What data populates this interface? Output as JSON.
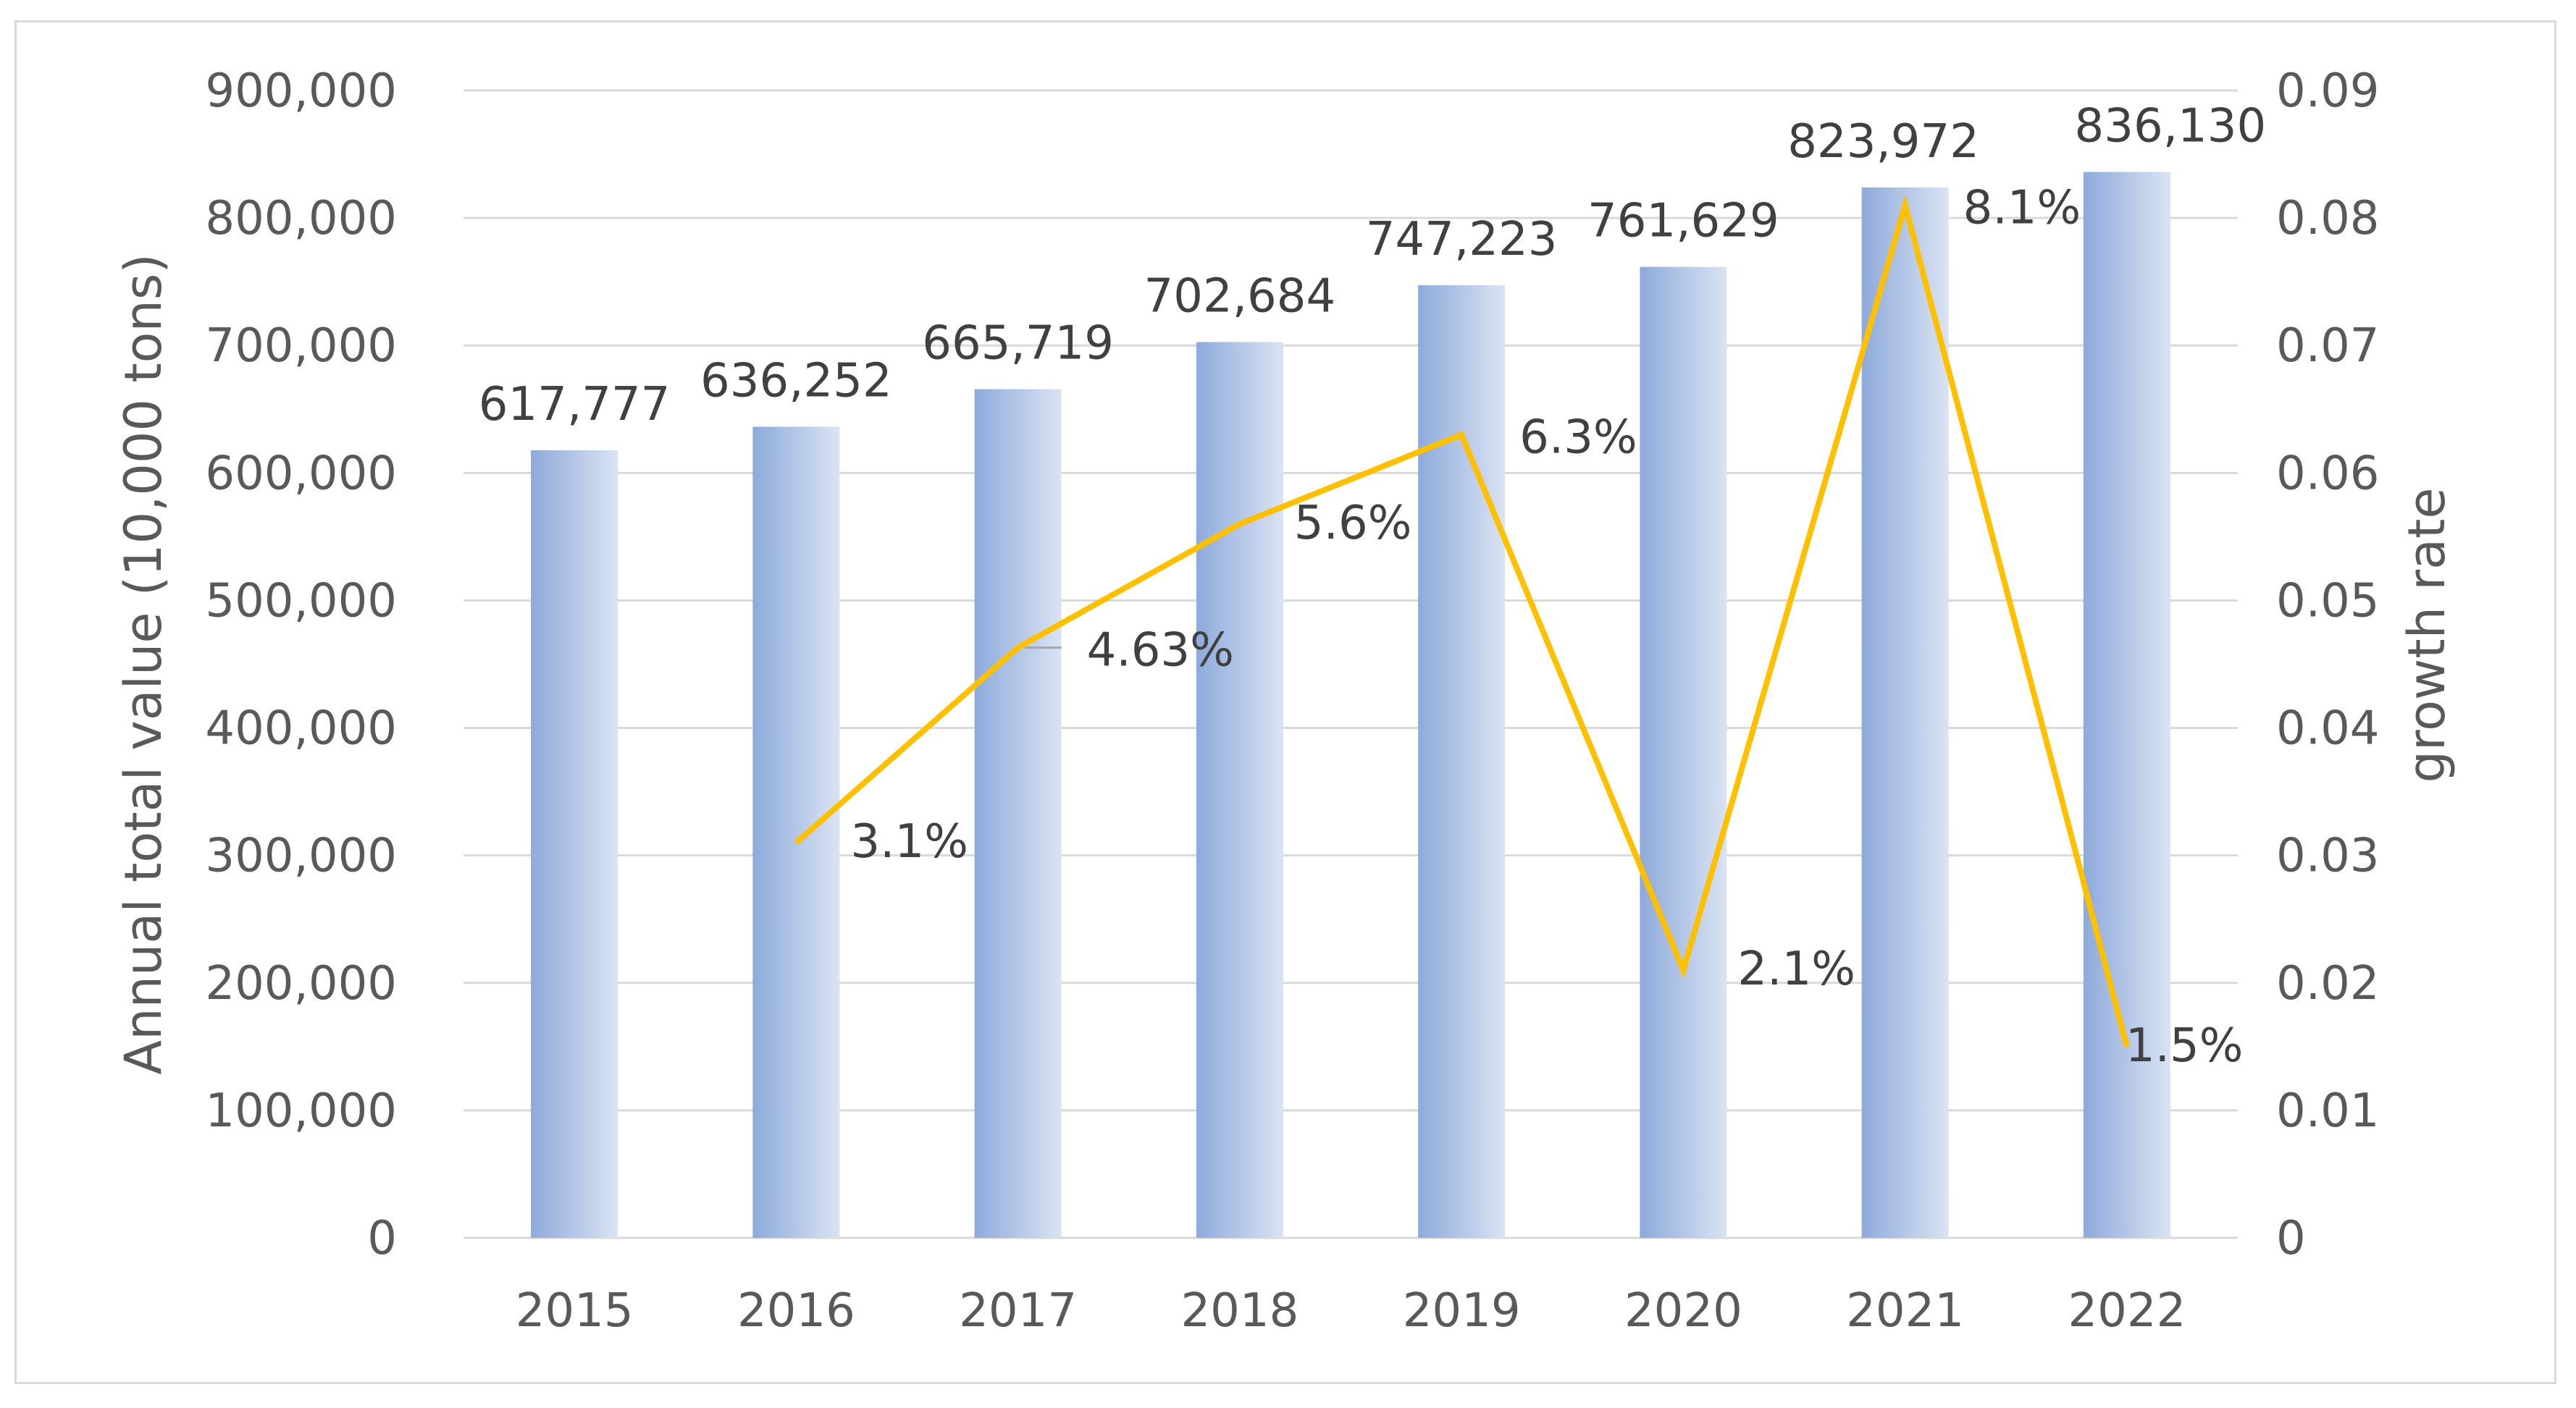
{
  "chart_data": {
    "type": "bar",
    "categories": [
      "2015",
      "2016",
      "2017",
      "2018",
      "2019",
      "2020",
      "2021",
      "2022"
    ],
    "series": [
      {
        "name": "Annual total value",
        "type": "bar",
        "axis": "left",
        "values": [
          617777,
          636252,
          665719,
          702684,
          747223,
          761629,
          823972,
          836130
        ],
        "labels": [
          "617,777",
          "636,252",
          "665,719",
          "702,684",
          "747,223",
          "761,629",
          "823,972",
          "836,130"
        ]
      },
      {
        "name": "growth rate",
        "type": "line",
        "axis": "right",
        "x": [
          "2016",
          "2017",
          "2018",
          "2019",
          "2020",
          "2021",
          "2022"
        ],
        "values": [
          0.031,
          0.0463,
          0.056,
          0.063,
          0.021,
          0.081,
          0.015
        ],
        "labels": [
          "3.1%",
          "4.63%",
          "5.6%",
          "6.3%",
          "2.1%",
          "8.1%",
          "1.5%"
        ]
      }
    ],
    "ylabel": "Annual total value (10,000 tons)",
    "y2label": "growth rate",
    "ylim": [
      0,
      900000
    ],
    "y2lim": [
      0,
      0.09
    ],
    "yticks": [
      "0",
      "100,000",
      "200,000",
      "300,000",
      "400,000",
      "500,000",
      "600,000",
      "700,000",
      "800,000",
      "900,000"
    ],
    "y2ticks": [
      "0",
      "0.01",
      "0.02",
      "0.03",
      "0.04",
      "0.05",
      "0.06",
      "0.07",
      "0.08",
      "0.09"
    ],
    "grid": true,
    "colors": {
      "bar_dark": "#8eaadb",
      "bar_light": "#dae3f3",
      "line": "#ffc000",
      "grid": "#d9d9d9",
      "text": "#595959"
    }
  }
}
